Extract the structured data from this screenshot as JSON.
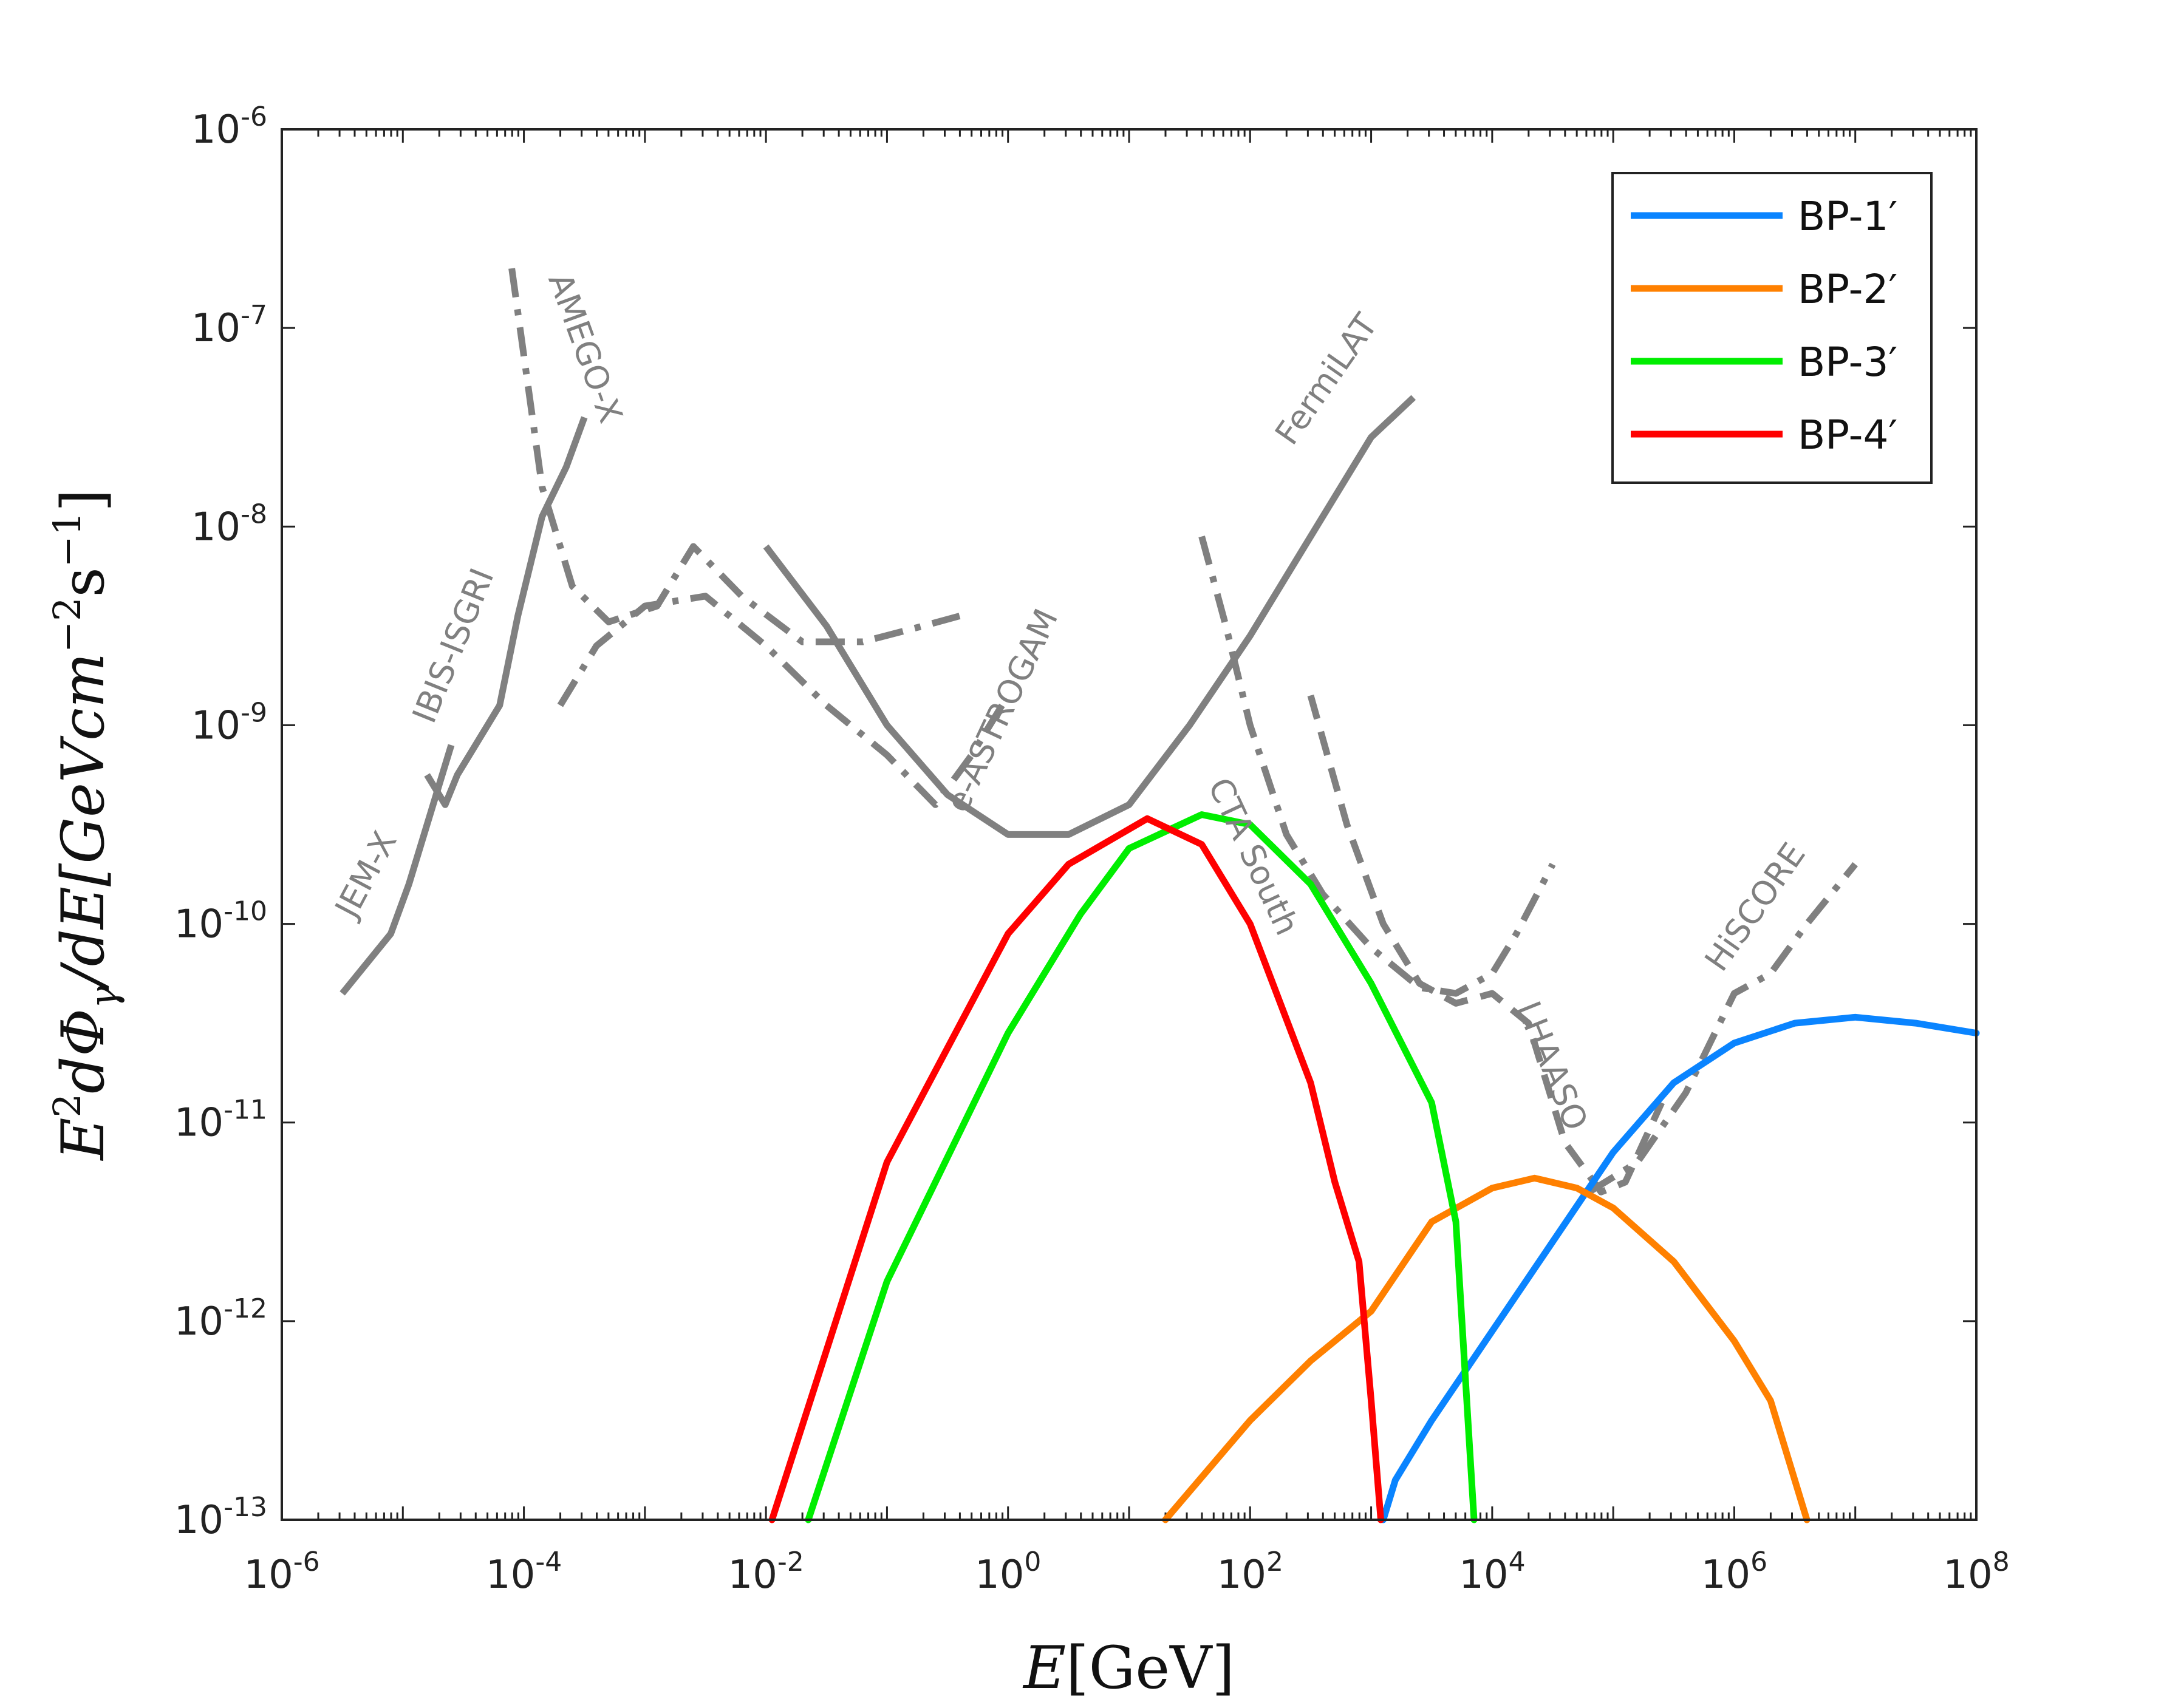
{
  "chart_data": {
    "type": "line",
    "xscale": "log",
    "yscale": "log",
    "xlim": [
      -6,
      8
    ],
    "ylim": [
      -13,
      -6
    ],
    "x_ticks": [
      {
        "base": "10",
        "exp": "-6"
      },
      {
        "base": "10",
        "exp": "-4"
      },
      {
        "base": "10",
        "exp": "-2"
      },
      {
        "base": "10",
        "exp": "0"
      },
      {
        "base": "10",
        "exp": "2"
      },
      {
        "base": "10",
        "exp": "4"
      },
      {
        "base": "10",
        "exp": "6"
      },
      {
        "base": "10",
        "exp": "8"
      }
    ],
    "y_ticks": [
      {
        "base": "10",
        "exp": "-13"
      },
      {
        "base": "10",
        "exp": "-12"
      },
      {
        "base": "10",
        "exp": "-11"
      },
      {
        "base": "10",
        "exp": "-10"
      },
      {
        "base": "10",
        "exp": "-9"
      },
      {
        "base": "10",
        "exp": "-8"
      },
      {
        "base": "10",
        "exp": "-7"
      },
      {
        "base": "10",
        "exp": "-6"
      }
    ],
    "xlabel": {
      "var": "E",
      "unit": "[GeV]"
    },
    "ylabel": {
      "main": "E",
      "sup1": "2",
      "mid": "dΦ",
      "sub": "γ",
      "tail": "/dE[GeVcm",
      "sup2": "−2",
      "s": "s",
      "sup3": "−1",
      "close": "]"
    },
    "legend_position": "top-right",
    "series": [
      {
        "name": "BP-1′",
        "color": "#0a84ff",
        "points": [
          [
            3.1,
            -13
          ],
          [
            3.2,
            -12.8
          ],
          [
            3.5,
            -12.5
          ],
          [
            4,
            -12.05
          ],
          [
            4.5,
            -11.6
          ],
          [
            5,
            -11.15
          ],
          [
            5.5,
            -10.8
          ],
          [
            6,
            -10.6
          ],
          [
            6.5,
            -10.5
          ],
          [
            7,
            -10.47
          ],
          [
            7.5,
            -10.5
          ],
          [
            8,
            -10.55
          ]
        ]
      },
      {
        "name": "BP-2′",
        "color": "#ff8000",
        "points": [
          [
            1.3,
            -13
          ],
          [
            2,
            -12.5
          ],
          [
            2.5,
            -12.2
          ],
          [
            3,
            -11.95
          ],
          [
            3.5,
            -11.5
          ],
          [
            4,
            -11.33
          ],
          [
            4.35,
            -11.28
          ],
          [
            4.7,
            -11.33
          ],
          [
            5,
            -11.43
          ],
          [
            5.5,
            -11.7
          ],
          [
            6,
            -12.1
          ],
          [
            6.3,
            -12.4
          ],
          [
            6.5,
            -12.8
          ],
          [
            6.6,
            -13
          ]
        ]
      },
      {
        "name": "BP-3′",
        "color": "#00ee00",
        "points": [
          [
            -1.65,
            -13
          ],
          [
            -1,
            -11.8
          ],
          [
            0,
            -10.55
          ],
          [
            0.6,
            -9.95
          ],
          [
            1,
            -9.62
          ],
          [
            1.6,
            -9.45
          ],
          [
            2,
            -9.5
          ],
          [
            2.5,
            -9.8
          ],
          [
            3,
            -10.3
          ],
          [
            3.5,
            -10.9
          ],
          [
            3.7,
            -11.5
          ],
          [
            3.8,
            -12.5
          ],
          [
            3.85,
            -13
          ]
        ]
      },
      {
        "name": "BP-4′",
        "color": "#ff0000",
        "points": [
          [
            -1.95,
            -13
          ],
          [
            -1,
            -11.2
          ],
          [
            0,
            -10.05
          ],
          [
            0.5,
            -9.7
          ],
          [
            1.15,
            -9.47
          ],
          [
            1.6,
            -9.6
          ],
          [
            2,
            -10
          ],
          [
            2.5,
            -10.8
          ],
          [
            2.7,
            -11.3
          ],
          [
            2.9,
            -11.7
          ],
          [
            3.0,
            -12.4
          ],
          [
            3.08,
            -13
          ]
        ]
      }
    ],
    "sensitivity_curves": [
      {
        "name": "JEM-X",
        "style": "solid",
        "points": [
          [
            -5.5,
            -10.35
          ],
          [
            -5.3,
            -10.2
          ],
          [
            -5.1,
            -10.05
          ],
          [
            -4.95,
            -9.8
          ],
          [
            -4.75,
            -9.4
          ],
          [
            -4.6,
            -9.1
          ]
        ]
      },
      {
        "name": "IBIS-ISGRI",
        "style": "solid",
        "points": [
          [
            -4.8,
            -9.25
          ],
          [
            -4.65,
            -9.4
          ],
          [
            -4.55,
            -9.25
          ],
          [
            -4.4,
            -9.1
          ],
          [
            -4.2,
            -8.9
          ],
          [
            -4.05,
            -8.45
          ],
          [
            -3.85,
            -7.95
          ],
          [
            -3.65,
            -7.7
          ],
          [
            -3.5,
            -7.45
          ]
        ]
      },
      {
        "name": "AMEGO-X",
        "style": "dashdot",
        "points": [
          [
            -4.1,
            -6.7
          ],
          [
            -3.85,
            -7.8
          ],
          [
            -3.6,
            -8.3
          ],
          [
            -3.3,
            -8.48
          ],
          [
            -2.9,
            -8.4
          ],
          [
            -2.6,
            -8.1
          ],
          [
            -2.2,
            -8.35
          ],
          [
            -1.7,
            -8.58
          ],
          [
            -1.2,
            -8.58
          ],
          [
            -0.7,
            -8.5
          ],
          [
            -0.4,
            -8.45
          ]
        ]
      },
      {
        "name": "e-ASTROGAM",
        "style": "dashdot",
        "points": [
          [
            -3.7,
            -8.9
          ],
          [
            -3.4,
            -8.6
          ],
          [
            -3,
            -8.4
          ],
          [
            -2.5,
            -8.35
          ],
          [
            -2,
            -8.6
          ],
          [
            -1.5,
            -8.9
          ],
          [
            -1,
            -9.15
          ],
          [
            -0.6,
            -9.4
          ],
          [
            -0.3,
            -9.15
          ],
          [
            0,
            -8.85
          ]
        ]
      },
      {
        "name": "FermiLAT",
        "style": "solid",
        "points": [
          [
            -2.0,
            -8.1
          ],
          [
            -1.5,
            -8.5
          ],
          [
            -1,
            -9.0
          ],
          [
            -0.5,
            -9.35
          ],
          [
            0,
            -9.55
          ],
          [
            0.5,
            -9.55
          ],
          [
            1,
            -9.4
          ],
          [
            1.5,
            -9.0
          ],
          [
            2,
            -8.55
          ],
          [
            2.5,
            -8.05
          ],
          [
            3,
            -7.55
          ],
          [
            3.35,
            -7.35
          ]
        ]
      },
      {
        "name": "CTA South",
        "style": "dashdot",
        "points": [
          [
            1.6,
            -8.05
          ],
          [
            1.8,
            -8.5
          ],
          [
            2,
            -9.0
          ],
          [
            2.3,
            -9.55
          ],
          [
            2.6,
            -9.85
          ],
          [
            3,
            -10.12
          ],
          [
            3.4,
            -10.32
          ],
          [
            3.7,
            -10.35
          ],
          [
            4,
            -10.25
          ],
          [
            4.2,
            -10.05
          ],
          [
            4.5,
            -9.7
          ]
        ]
      },
      {
        "name": "LHAASO",
        "style": "dashed",
        "points": [
          [
            2.5,
            -8.85
          ],
          [
            2.8,
            -9.5
          ],
          [
            3.1,
            -10
          ],
          [
            3.4,
            -10.3
          ],
          [
            3.7,
            -10.4
          ],
          [
            4,
            -10.35
          ],
          [
            4.3,
            -10.5
          ],
          [
            4.6,
            -11.1
          ],
          [
            4.9,
            -11.35
          ],
          [
            5.1,
            -11.3
          ],
          [
            5.4,
            -10.9
          ]
        ]
      },
      {
        "name": "HiSCORE",
        "style": "dashdot",
        "points": [
          [
            4.8,
            -11.35
          ],
          [
            5.2,
            -11.2
          ],
          [
            5.6,
            -10.85
          ],
          [
            6,
            -10.35
          ],
          [
            6.3,
            -10.25
          ],
          [
            6.6,
            -10.0
          ],
          [
            7.0,
            -9.7
          ]
        ]
      }
    ]
  }
}
